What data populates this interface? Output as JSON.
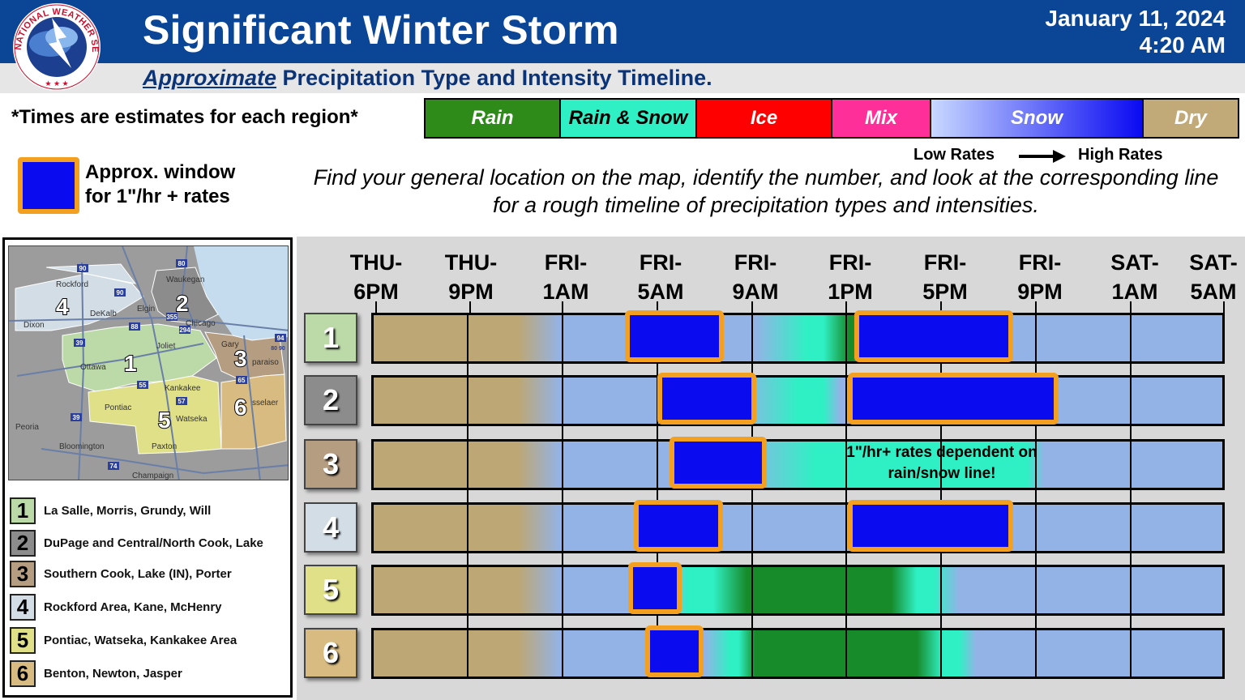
{
  "header": {
    "title": "Significant Winter Storm",
    "date": "January 11, 2024",
    "time": "4:20 AM",
    "subtitle_em": "Approximate",
    "subtitle_rest": " Precipitation Type and Intensity Timeline.",
    "logo_text": "NATIONAL WEATHER SERVICE"
  },
  "notes": {
    "times_note": "*Times are estimates for each region*",
    "low_rates": "Low Rates",
    "high_rates": "High Rates",
    "window_line1": "Approx. window",
    "window_line2": "for 1\"/hr + rates",
    "instructions": "Find your general location on the map, identify the number, and look at the corresponding line for a rough timeline of precipitation types and intensities.",
    "rain_snow_note": "1\"/hr+ rates dependent on rain/snow line!"
  },
  "legend": [
    {
      "label": "Rain",
      "color": "#2e8b1a"
    },
    {
      "label": "Rain & Snow",
      "color": "#2ff0c4",
      "text_color": "#000000"
    },
    {
      "label": "Ice",
      "color": "#ff0000"
    },
    {
      "label": "Mix",
      "color": "#ff2f9a"
    },
    {
      "label": "Snow",
      "color_low": "#c8d8ff",
      "color_high": "#0a0af2"
    },
    {
      "label": "Dry",
      "color": "#c2aa78"
    }
  ],
  "time_labels": [
    {
      "day": "THU-",
      "hour": "6PM"
    },
    {
      "day": "THU-",
      "hour": "9PM"
    },
    {
      "day": "FRI-",
      "hour": "1AM"
    },
    {
      "day": "FRI-",
      "hour": "5AM"
    },
    {
      "day": "FRI-",
      "hour": "9AM"
    },
    {
      "day": "FRI-",
      "hour": "1PM"
    },
    {
      "day": "FRI-",
      "hour": "5PM"
    },
    {
      "day": "FRI-",
      "hour": "9PM"
    },
    {
      "day": "SAT-",
      "hour": "1AM"
    },
    {
      "day": "SAT-",
      "hour": "5AM"
    }
  ],
  "regions": [
    {
      "num": "1",
      "label": "La Salle, Morris, Grundy, Will",
      "color": "#bcd9a8"
    },
    {
      "num": "2",
      "label": "DuPage and Central/North Cook, Lake",
      "color": "#8c8c8c"
    },
    {
      "num": "3",
      "label": "Southern Cook, Lake (IN), Porter",
      "color": "#b59d82"
    },
    {
      "num": "4",
      "label": "Rockford Area, Kane, McHenry",
      "color": "#d2dde6"
    },
    {
      "num": "5",
      "label": "Pontiac, Watseka, Kankakee Area",
      "color": "#e0e088"
    },
    {
      "num": "6",
      "label": "Benton, Newton, Jasper",
      "color": "#d8bb80"
    }
  ],
  "map_labels": {
    "rockford": "Rockford",
    "waukegan": "Waukegan",
    "elgin": "Elgin",
    "dekalb": "DeKalb",
    "dixon": "Dixon",
    "chicago": "Chicago",
    "joliet": "Joliet",
    "gary": "Gary",
    "valparaiso": "paraiso",
    "ottawa": "Ottawa",
    "kankakee": "Kankakee",
    "pontiac": "Pontiac",
    "watseka": "Watseka",
    "rensselaer": "sselaer",
    "peoria": "Peoria",
    "bloomington": "Bloomington",
    "paxton": "Paxton",
    "champaign": "Champaign",
    "i90a": "90",
    "i80": "80",
    "i90b": "90",
    "i88": "88",
    "i39a": "39",
    "i55": "55",
    "i57": "57",
    "i65": "65",
    "i39b": "39",
    "i74": "74",
    "i94": "94",
    "i294": "294",
    "i355": "355",
    "i8090": "80 90"
  }
}
